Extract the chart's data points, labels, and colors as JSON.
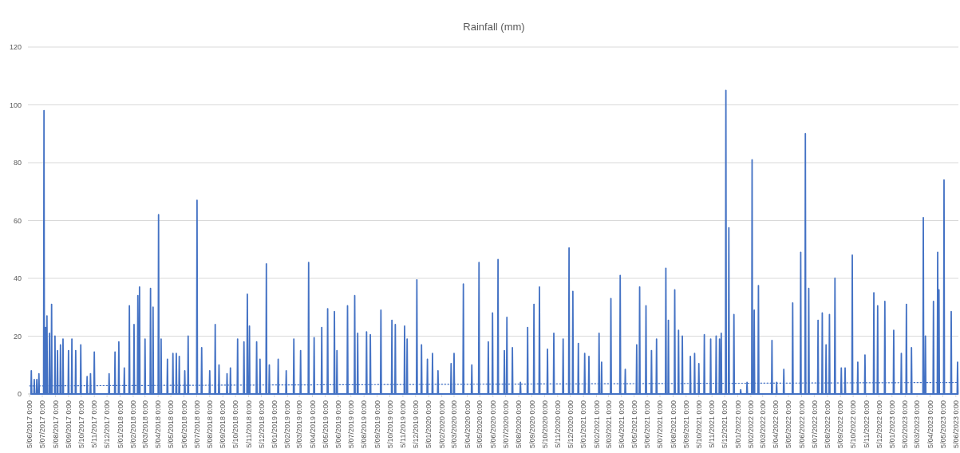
{
  "chart_data": {
    "type": "line",
    "title": "Rainfall (mm)",
    "xlim": [
      "2017-06-01",
      "2023-06-11"
    ],
    "xticks": [
      {
        "value": "2017-06-05",
        "label": "5/06/2017 0:00"
      },
      {
        "value": "2017-07-05",
        "label": "5/07/2017 0:00"
      },
      {
        "value": "2017-08-05",
        "label": "5/08/2017 0:00"
      },
      {
        "value": "2017-09-05",
        "label": "5/09/2017 0:00"
      },
      {
        "value": "2017-10-05",
        "label": "5/10/2017 0:00"
      },
      {
        "value": "2017-11-05",
        "label": "5/11/2017 0:00"
      },
      {
        "value": "2017-12-05",
        "label": "5/12/2017 0:00"
      },
      {
        "value": "2018-01-05",
        "label": "5/01/2018 0:00"
      },
      {
        "value": "2018-02-05",
        "label": "5/02/2018 0:00"
      },
      {
        "value": "2018-03-05",
        "label": "5/03/2018 0:00"
      },
      {
        "value": "2018-04-05",
        "label": "5/04/2018 0:00"
      },
      {
        "value": "2018-05-05",
        "label": "5/05/2018 0:00"
      },
      {
        "value": "2018-06-05",
        "label": "5/06/2018 0:00"
      },
      {
        "value": "2018-07-05",
        "label": "5/07/2018 0:00"
      },
      {
        "value": "2018-08-05",
        "label": "5/08/2018 0:00"
      },
      {
        "value": "2018-09-05",
        "label": "5/09/2018 0:00"
      },
      {
        "value": "2018-10-05",
        "label": "5/10/2018 0:00"
      },
      {
        "value": "2018-11-05",
        "label": "5/11/2018 0:00"
      },
      {
        "value": "2018-12-05",
        "label": "5/12/2018 0:00"
      },
      {
        "value": "2019-01-05",
        "label": "5/01/2019 0:00"
      },
      {
        "value": "2019-02-05",
        "label": "5/02/2019 0:00"
      },
      {
        "value": "2019-03-05",
        "label": "5/03/2019 0:00"
      },
      {
        "value": "2019-04-05",
        "label": "5/04/2019 0:00"
      },
      {
        "value": "2019-05-05",
        "label": "5/05/2019 0:00"
      },
      {
        "value": "2019-06-05",
        "label": "5/06/2019 0:00"
      },
      {
        "value": "2019-07-05",
        "label": "5/07/2019 0:00"
      },
      {
        "value": "2019-08-05",
        "label": "5/08/2019 0:00"
      },
      {
        "value": "2019-09-05",
        "label": "5/09/2019 0:00"
      },
      {
        "value": "2019-10-05",
        "label": "5/10/2019 0:00"
      },
      {
        "value": "2019-11-05",
        "label": "5/11/2019 0:00"
      },
      {
        "value": "2019-12-05",
        "label": "5/12/2019 0:00"
      },
      {
        "value": "2020-01-05",
        "label": "5/01/2020 0:00"
      },
      {
        "value": "2020-02-05",
        "label": "5/02/2020 0:00"
      },
      {
        "value": "2020-03-05",
        "label": "5/03/2020 0:00"
      },
      {
        "value": "2020-04-05",
        "label": "5/04/2020 0:00"
      },
      {
        "value": "2020-05-05",
        "label": "5/05/2020 0:00"
      },
      {
        "value": "2020-06-05",
        "label": "5/06/2020 0:00"
      },
      {
        "value": "2020-07-05",
        "label": "5/07/2020 0:00"
      },
      {
        "value": "2020-08-05",
        "label": "5/08/2020 0:00"
      },
      {
        "value": "2020-09-05",
        "label": "5/09/2020 0:00"
      },
      {
        "value": "2020-10-05",
        "label": "5/10/2020 0:00"
      },
      {
        "value": "2020-11-05",
        "label": "5/11/2020 0:00"
      },
      {
        "value": "2020-12-05",
        "label": "5/12/2020 0:00"
      },
      {
        "value": "2021-01-05",
        "label": "5/01/2021 0:00"
      },
      {
        "value": "2021-02-05",
        "label": "5/02/2021 0:00"
      },
      {
        "value": "2021-03-05",
        "label": "5/03/2021 0:00"
      },
      {
        "value": "2021-04-05",
        "label": "5/04/2021 0:00"
      },
      {
        "value": "2021-05-05",
        "label": "5/05/2021 0:00"
      },
      {
        "value": "2021-06-05",
        "label": "5/06/2021 0:00"
      },
      {
        "value": "2021-07-05",
        "label": "5/07/2021 0:00"
      },
      {
        "value": "2021-08-05",
        "label": "5/08/2021 0:00"
      },
      {
        "value": "2021-09-05",
        "label": "5/09/2021 0:00"
      },
      {
        "value": "2021-10-05",
        "label": "5/10/2021 0:00"
      },
      {
        "value": "2021-11-05",
        "label": "5/11/2021 0:00"
      },
      {
        "value": "2021-12-05",
        "label": "5/12/2021 0:00"
      },
      {
        "value": "2022-01-05",
        "label": "5/01/2022 0:00"
      },
      {
        "value": "2022-02-05",
        "label": "5/02/2022 0:00"
      },
      {
        "value": "2022-03-05",
        "label": "5/03/2022 0:00"
      },
      {
        "value": "2022-04-05",
        "label": "5/04/2022 0:00"
      },
      {
        "value": "2022-05-05",
        "label": "5/05/2022 0:00"
      },
      {
        "value": "2022-06-05",
        "label": "5/06/2022 0:00"
      },
      {
        "value": "2022-07-05",
        "label": "5/07/2022 0:00"
      },
      {
        "value": "2022-08-05",
        "label": "5/08/2022 0:00"
      },
      {
        "value": "2022-09-05",
        "label": "5/09/2022 0:00"
      },
      {
        "value": "2022-10-05",
        "label": "5/10/2022 0:00"
      },
      {
        "value": "2022-11-05",
        "label": "5/11/2022 0:00"
      },
      {
        "value": "2022-12-05",
        "label": "5/12/2022 0:00"
      },
      {
        "value": "2023-01-05",
        "label": "5/01/2023 0:00"
      },
      {
        "value": "2023-02-05",
        "label": "5/02/2023 0:00"
      },
      {
        "value": "2023-03-05",
        "label": "5/03/2023 0:00"
      },
      {
        "value": "2023-04-05",
        "label": "5/04/2023 0:00"
      },
      {
        "value": "2023-05-05",
        "label": "5/05/2023 0:00"
      },
      {
        "value": "2023-06-05",
        "label": "5/06/2023 0:00"
      }
    ],
    "ylim": [
      0,
      120
    ],
    "yticks": [
      0,
      20,
      40,
      60,
      80,
      100,
      120
    ],
    "grid": "y",
    "series": [
      {
        "color": "#4472c4",
        "line_style": "solid",
        "x": [
          "2017-06-08",
          "2017-06-09",
          "2017-06-10",
          "2017-06-15",
          "2017-06-16",
          "2017-06-17",
          "2017-06-21",
          "2017-06-22",
          "2017-06-23",
          "2017-06-26",
          "2017-06-27",
          "2017-06-28",
          "2017-07-08",
          "2017-07-09",
          "2017-07-10",
          "2017-07-12",
          "2017-07-13",
          "2017-07-14",
          "2017-07-15",
          "2017-07-16",
          "2017-07-17",
          "2017-07-21",
          "2017-07-22",
          "2017-07-23",
          "2017-07-26",
          "2017-07-27",
          "2017-07-28",
          "2017-08-03",
          "2017-08-04",
          "2017-08-05",
          "2017-08-09",
          "2017-08-10",
          "2017-08-11",
          "2017-08-16",
          "2017-08-17",
          "2017-08-18",
          "2017-08-22",
          "2017-08-23",
          "2017-08-24",
          "2017-09-04",
          "2017-09-05",
          "2017-09-06",
          "2017-09-12",
          "2017-09-13",
          "2017-09-14",
          "2017-09-21",
          "2017-09-22",
          "2017-09-23",
          "2017-10-03",
          "2017-10-04",
          "2017-10-05",
          "2017-10-18",
          "2017-10-19",
          "2017-10-20",
          "2017-10-26",
          "2017-10-27",
          "2017-10-28",
          "2017-11-04",
          "2017-11-05",
          "2017-11-06",
          "2017-12-09",
          "2017-12-10",
          "2017-12-11",
          "2017-12-23",
          "2017-12-24",
          "2017-12-25",
          "2018-01-01",
          "2018-01-02",
          "2018-01-03",
          "2018-01-14",
          "2018-01-15",
          "2018-01-16",
          "2018-01-26",
          "2018-01-27",
          "2018-01-28",
          "2018-02-06",
          "2018-02-07",
          "2018-02-08",
          "2018-02-15",
          "2018-02-16",
          "2018-02-17",
          "2018-02-19",
          "2018-02-20",
          "2018-02-21",
          "2018-03-04",
          "2018-03-05",
          "2018-03-06",
          "2018-03-17",
          "2018-03-18",
          "2018-03-19",
          "2018-03-23",
          "2018-03-24",
          "2018-03-25",
          "2018-04-05",
          "2018-04-06",
          "2018-04-07",
          "2018-04-11",
          "2018-04-12",
          "2018-04-13",
          "2018-04-26",
          "2018-04-27",
          "2018-04-28",
          "2018-05-09",
          "2018-05-10",
          "2018-05-11",
          "2018-05-17",
          "2018-05-18",
          "2018-05-19",
          "2018-05-24",
          "2018-05-25",
          "2018-05-26",
          "2018-06-06",
          "2018-06-07",
          "2018-06-08",
          "2018-06-14",
          "2018-06-15",
          "2018-06-16",
          "2018-07-05",
          "2018-07-06",
          "2018-07-07",
          "2018-07-16",
          "2018-07-17",
          "2018-07-18",
          "2018-08-04",
          "2018-08-05",
          "2018-08-06",
          "2018-08-17",
          "2018-08-18",
          "2018-08-19",
          "2018-08-26",
          "2018-08-27",
          "2018-08-28",
          "2018-09-14",
          "2018-09-15",
          "2018-09-16",
          "2018-09-22",
          "2018-09-23",
          "2018-09-24",
          "2018-10-09",
          "2018-10-10",
          "2018-10-11",
          "2018-10-24",
          "2018-10-25",
          "2018-10-26",
          "2018-11-01",
          "2018-11-02",
          "2018-11-03",
          "2018-11-06",
          "2018-11-07",
          "2018-11-08",
          "2018-11-23",
          "2018-11-24",
          "2018-11-25",
          "2018-12-01",
          "2018-12-02",
          "2018-12-03",
          "2018-12-16",
          "2018-12-17",
          "2018-12-18",
          "2018-12-23",
          "2018-12-24",
          "2018-12-25",
          "2019-01-13",
          "2019-01-14",
          "2019-01-15",
          "2019-02-01",
          "2019-02-02",
          "2019-02-03",
          "2019-02-19",
          "2019-02-20",
          "2019-02-21",
          "2019-03-07",
          "2019-03-08",
          "2019-03-09",
          "2019-03-26",
          "2019-03-27",
          "2019-03-28",
          "2019-04-08",
          "2019-04-09",
          "2019-04-10",
          "2019-04-26",
          "2019-04-27",
          "2019-04-28",
          "2019-05-10",
          "2019-05-11",
          "2019-05-12",
          "2019-05-26",
          "2019-05-27",
          "2019-05-28",
          "2019-06-01",
          "2019-06-02",
          "2019-06-03",
          "2019-06-26",
          "2019-06-27",
          "2019-06-28",
          "2019-07-13",
          "2019-07-14",
          "2019-07-15",
          "2019-07-20",
          "2019-07-21",
          "2019-07-22",
          "2019-08-10",
          "2019-08-11",
          "2019-08-12",
          "2019-08-19",
          "2019-08-20",
          "2019-08-21",
          "2019-09-13",
          "2019-09-14",
          "2019-09-15",
          "2019-10-09",
          "2019-10-10",
          "2019-10-11",
          "2019-10-17",
          "2019-10-18",
          "2019-10-19",
          "2019-11-08",
          "2019-11-09",
          "2019-11-10",
          "2019-11-14",
          "2019-11-15",
          "2019-11-16",
          "2019-12-07",
          "2019-12-08",
          "2019-12-09",
          "2019-12-18",
          "2019-12-19",
          "2019-12-20",
          "2020-01-01",
          "2020-01-02",
          "2020-01-03",
          "2020-01-13",
          "2020-01-14",
          "2020-01-15",
          "2020-01-26",
          "2020-01-27",
          "2020-01-28",
          "2020-02-26",
          "2020-02-27",
          "2020-02-28",
          "2020-03-04",
          "2020-03-05",
          "2020-03-06",
          "2020-03-26",
          "2020-03-27",
          "2020-03-28",
          "2020-04-15",
          "2020-04-16",
          "2020-04-17",
          "2020-05-02",
          "2020-05-03",
          "2020-05-04",
          "2020-05-24",
          "2020-05-25",
          "2020-05-26",
          "2020-06-03",
          "2020-06-04",
          "2020-06-05",
          "2020-06-16",
          "2020-06-17",
          "2020-06-18",
          "2020-07-01",
          "2020-07-02",
          "2020-07-03",
          "2020-07-07",
          "2020-07-08",
          "2020-07-09",
          "2020-07-20",
          "2020-07-21",
          "2020-07-22",
          "2020-08-08",
          "2020-08-09",
          "2020-08-10",
          "2020-08-25",
          "2020-08-26",
          "2020-08-27",
          "2020-09-09",
          "2020-09-10",
          "2020-09-11",
          "2020-09-22",
          "2020-09-23",
          "2020-09-24",
          "2020-10-11",
          "2020-10-12",
          "2020-10-13",
          "2020-10-26",
          "2020-10-27",
          "2020-10-28",
          "2020-11-17",
          "2020-11-18",
          "2020-11-19",
          "2020-12-01",
          "2020-12-02",
          "2020-12-03",
          "2020-12-10",
          "2020-12-11",
          "2020-12-12",
          "2020-12-23",
          "2020-12-24",
          "2020-12-25",
          "2021-01-07",
          "2021-01-08",
          "2021-01-09",
          "2021-01-17",
          "2021-01-18",
          "2021-01-19",
          "2021-02-10",
          "2021-02-11",
          "2021-02-12",
          "2021-02-16",
          "2021-02-17",
          "2021-02-18",
          "2021-03-10",
          "2021-03-11",
          "2021-03-12",
          "2021-04-01",
          "2021-04-02",
          "2021-04-03",
          "2021-04-13",
          "2021-04-14",
          "2021-04-15",
          "2021-05-10",
          "2021-05-11",
          "2021-05-12",
          "2021-05-17",
          "2021-05-18",
          "2021-05-19",
          "2021-06-01",
          "2021-06-02",
          "2021-06-03",
          "2021-06-14",
          "2021-06-15",
          "2021-06-16",
          "2021-06-26",
          "2021-06-27",
          "2021-06-28",
          "2021-07-18",
          "2021-07-19",
          "2021-07-20",
          "2021-07-24",
          "2021-07-25",
          "2021-07-26",
          "2021-08-08",
          "2021-08-09",
          "2021-08-10",
          "2021-08-17",
          "2021-08-18",
          "2021-08-19",
          "2021-08-26",
          "2021-08-27",
          "2021-08-28",
          "2021-09-14",
          "2021-09-15",
          "2021-09-16",
          "2021-09-24",
          "2021-09-25",
          "2021-09-26",
          "2021-10-04",
          "2021-10-05",
          "2021-10-06",
          "2021-10-17",
          "2021-10-18",
          "2021-10-19",
          "2021-11-01",
          "2021-11-02",
          "2021-11-03",
          "2021-11-14",
          "2021-11-15",
          "2021-11-16",
          "2021-11-22",
          "2021-11-23",
          "2021-11-24",
          "2021-11-26",
          "2021-11-27",
          "2021-11-28",
          "2021-12-07",
          "2021-12-08",
          "2021-12-09",
          "2021-12-14",
          "2021-12-15",
          "2021-12-16",
          "2021-12-26",
          "2021-12-27",
          "2021-12-28",
          "2022-01-11",
          "2022-01-12",
          "2022-01-13",
          "2022-01-26",
          "2022-01-27",
          "2022-01-28",
          "2022-02-07",
          "2022-02-08",
          "2022-02-09",
          "2022-02-12",
          "2022-02-13",
          "2022-02-14",
          "2022-02-22",
          "2022-02-23",
          "2022-02-24",
          "2022-03-26",
          "2022-03-27",
          "2022-03-28",
          "2022-04-06",
          "2022-04-07",
          "2022-04-08",
          "2022-04-23",
          "2022-04-24",
          "2022-04-25",
          "2022-05-14",
          "2022-05-15",
          "2022-05-16",
          "2022-06-02",
          "2022-06-03",
          "2022-06-04",
          "2022-06-13",
          "2022-06-14",
          "2022-06-15",
          "2022-06-21",
          "2022-06-22",
          "2022-06-23",
          "2022-07-13",
          "2022-07-14",
          "2022-07-15",
          "2022-07-23",
          "2022-07-24",
          "2022-07-25",
          "2022-08-01",
          "2022-08-02",
          "2022-08-03",
          "2022-08-09",
          "2022-08-10",
          "2022-08-11",
          "2022-08-22",
          "2022-08-23",
          "2022-08-24",
          "2022-09-06",
          "2022-09-07",
          "2022-09-08",
          "2022-09-15",
          "2022-09-16",
          "2022-09-17",
          "2022-10-02",
          "2022-10-03",
          "2022-10-04",
          "2022-10-15",
          "2022-10-16",
          "2022-10-17",
          "2022-11-01",
          "2022-11-02",
          "2022-11-03",
          "2022-11-22",
          "2022-11-23",
          "2022-11-24",
          "2022-12-01",
          "2022-12-02",
          "2022-12-03",
          "2022-12-18",
          "2022-12-19",
          "2022-12-20",
          "2023-01-08",
          "2023-01-09",
          "2023-01-10",
          "2023-01-26",
          "2023-01-27",
          "2023-01-28",
          "2023-02-07",
          "2023-02-08",
          "2023-02-09",
          "2023-02-19",
          "2023-02-20",
          "2023-02-21",
          "2023-03-19",
          "2023-03-20",
          "2023-03-21",
          "2023-03-24",
          "2023-03-25",
          "2023-03-26",
          "2023-04-12",
          "2023-04-13",
          "2023-04-14",
          "2023-04-22",
          "2023-04-23",
          "2023-04-24",
          "2023-04-25",
          "2023-04-26",
          "2023-04-27",
          "2023-05-07",
          "2023-05-08",
          "2023-05-09",
          "2023-05-24",
          "2023-05-25",
          "2023-05-26",
          "2023-06-08",
          "2023-06-09",
          "2023-06-10"
        ],
        "values": [
          0,
          8,
          0,
          0,
          5,
          0,
          0,
          5,
          0,
          0,
          7,
          0,
          0,
          98,
          0,
          0,
          23,
          0,
          0,
          27,
          0,
          0,
          21,
          0,
          0,
          31,
          0,
          0,
          20,
          0,
          0,
          15,
          0,
          0,
          17,
          0,
          0,
          19,
          0,
          0,
          15,
          0,
          0,
          19,
          0,
          0,
          15,
          0,
          0,
          17,
          0,
          0,
          6,
          0,
          0,
          7,
          0,
          0,
          14.5,
          0,
          0,
          7,
          0,
          0,
          14.5,
          0,
          0,
          18,
          0,
          0,
          9,
          0,
          0,
          30.5,
          0,
          0,
          24,
          0,
          0,
          34,
          0,
          0,
          37,
          0,
          0,
          19,
          0,
          0,
          36.5,
          0,
          0,
          30,
          0,
          0,
          62,
          0,
          0,
          19,
          0,
          0,
          12,
          0,
          0,
          14,
          0,
          0,
          14,
          0,
          0,
          13,
          0,
          0,
          8,
          0,
          0,
          20,
          0,
          0,
          67,
          0,
          0,
          16,
          0,
          0,
          8,
          0,
          0,
          24,
          0,
          0,
          10,
          0,
          0,
          7,
          0,
          0,
          9,
          0,
          0,
          19,
          0,
          0,
          18,
          0,
          0,
          34.5,
          0,
          0,
          23.5,
          0,
          0,
          18,
          0,
          0,
          12,
          0,
          0,
          45,
          0,
          0,
          10,
          0,
          0,
          12,
          0,
          0,
          8,
          0,
          0,
          19,
          0,
          0,
          15,
          0,
          0,
          45.5,
          0,
          0,
          19.5,
          0,
          0,
          23,
          0,
          0,
          29.5,
          0,
          0,
          28.5,
          0,
          0,
          15,
          0,
          0,
          30.5,
          0,
          0,
          34,
          0,
          0,
          21,
          0,
          0,
          21.5,
          0,
          0,
          20.5,
          0,
          0,
          29,
          0,
          0,
          25.5,
          0,
          0,
          24,
          0,
          0,
          23.5,
          0,
          0,
          19,
          0,
          0,
          39.5,
          0,
          0,
          17,
          0,
          0,
          12,
          0,
          0,
          14,
          0,
          0,
          8,
          0,
          0,
          10.5,
          0,
          0,
          14,
          0,
          0,
          38,
          0,
          0,
          10,
          0,
          0,
          45.5,
          0,
          0,
          18,
          0,
          0,
          28,
          0,
          0,
          46.5,
          0,
          0,
          15,
          0,
          0,
          26.5,
          0,
          0,
          16,
          0,
          0,
          4,
          0,
          0,
          23,
          0,
          0,
          31,
          0,
          0,
          37,
          0,
          0,
          15.5,
          0,
          0,
          21,
          0,
          0,
          19,
          0,
          0,
          50.5,
          0,
          0,
          35.5,
          0,
          0,
          17.5,
          0,
          0,
          14,
          0,
          0,
          13,
          0,
          0,
          21,
          0,
          0,
          11,
          0,
          0,
          33,
          0,
          0,
          41,
          0,
          0,
          8.5,
          0,
          0,
          17,
          0,
          0,
          37,
          0,
          0,
          30.5,
          0,
          0,
          15,
          0,
          0,
          19,
          0,
          0,
          43.5,
          0,
          0,
          25.5,
          0,
          0,
          36,
          0,
          0,
          22,
          0,
          0,
          20,
          0,
          0,
          13,
          0,
          0,
          14,
          0,
          0,
          10.5,
          0,
          0,
          20.5,
          0,
          0,
          19,
          0,
          0,
          20,
          0,
          0,
          19,
          0,
          0,
          21,
          0,
          0,
          105,
          0,
          0,
          57.5,
          0,
          0,
          27.5,
          0,
          0,
          1.5,
          0,
          0,
          4,
          0,
          0,
          81,
          0,
          0,
          29,
          0,
          0,
          37.5,
          0,
          0,
          18.5,
          0,
          0,
          4,
          0,
          0,
          8.5,
          0,
          0,
          31.5,
          0,
          0,
          49,
          0,
          0,
          90,
          0,
          0,
          36.5,
          0,
          0,
          25.5,
          0,
          0,
          28,
          0,
          0,
          17,
          0,
          0,
          27.5,
          0,
          0,
          40,
          0,
          0,
          9,
          0,
          0,
          9,
          0,
          0,
          48,
          0,
          0,
          11,
          0,
          0,
          13.5,
          0,
          0,
          35,
          0,
          0,
          30.5,
          0,
          0,
          32,
          0,
          0,
          22,
          0,
          0,
          14,
          0,
          0,
          31,
          0,
          0,
          16,
          0,
          0,
          61,
          0,
          0,
          20,
          0,
          0,
          32,
          0,
          0,
          49,
          0,
          0,
          36,
          0,
          0,
          74,
          0,
          0,
          28.5,
          0,
          0,
          11,
          0
        ]
      },
      {
        "color": "#4472c4",
        "line_style": "dotted",
        "x": [
          "2017-06-05",
          "2023-06-09"
        ],
        "values": [
          2.8,
          4
        ]
      }
    ]
  }
}
